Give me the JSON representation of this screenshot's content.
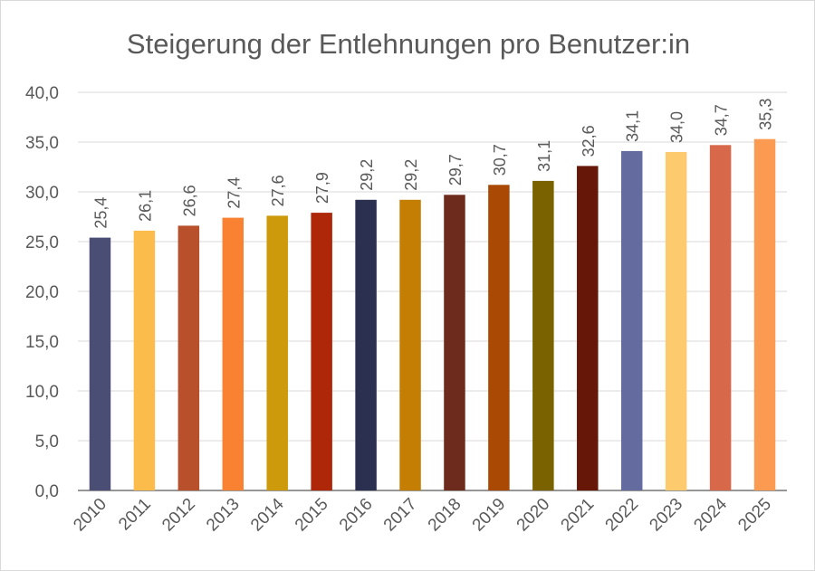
{
  "chart_data": {
    "type": "bar",
    "title": "Steigerung der Entlehnungen pro Benutzer:in",
    "xlabel": "",
    "ylabel": "",
    "ylim": [
      0,
      40
    ],
    "ytick_step": 5,
    "yticks": [
      "0,0",
      "5,0",
      "10,0",
      "15,0",
      "20,0",
      "25,0",
      "30,0",
      "35,0",
      "40,0"
    ],
    "grid": true,
    "legend": "none",
    "categories": [
      "2010",
      "2011",
      "2012",
      "2013",
      "2014",
      "2015",
      "2016",
      "2017",
      "2018",
      "2019",
      "2020",
      "2021",
      "2022",
      "2023",
      "2024",
      "2025"
    ],
    "values": [
      25.4,
      26.1,
      26.6,
      27.4,
      27.6,
      27.9,
      29.2,
      29.2,
      29.7,
      30.7,
      31.1,
      32.6,
      34.1,
      34.0,
      34.7,
      35.3
    ],
    "data_labels": [
      "25,4",
      "26,1",
      "26,6",
      "27,4",
      "27,6",
      "27,9",
      "29,2",
      "29,2",
      "29,7",
      "30,7",
      "31,1",
      "32,6",
      "34,1",
      "34,0",
      "34,7",
      "35,3"
    ],
    "bar_colors": [
      "#4a4e74",
      "#fcbc4c",
      "#b9502c",
      "#f88232",
      "#cc9a0a",
      "#ae2709",
      "#2b3050",
      "#c47e04",
      "#6c2b1c",
      "#a94903",
      "#7a6200",
      "#661707",
      "#646b9e",
      "#fdca6e",
      "#d7694a",
      "#fb9b52"
    ],
    "axis_color": "#595959",
    "grid_color": "#d9d9d9"
  }
}
